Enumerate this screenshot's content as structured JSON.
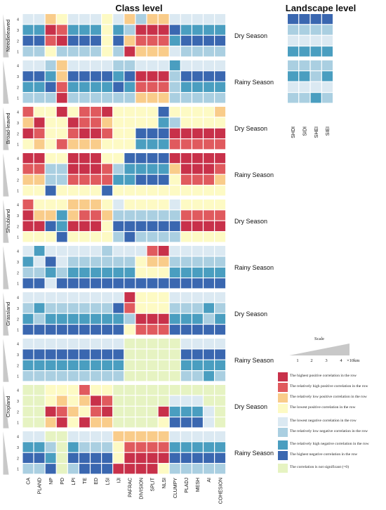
{
  "titles": {
    "class": "Class level",
    "landscape": "Landscape level"
  },
  "colors": {
    "p4": "#c8314a",
    "p3": "#e05a5e",
    "p2": "#f9cc8a",
    "p1": "#fdfac4",
    "n1": "#dbe9f2",
    "n2": "#aacfe1",
    "n3": "#4a9ec0",
    "n4": "#3a67b0",
    "ns": "#e6f3c2"
  },
  "chart_data": {
    "type": "heatmap",
    "value_scale": {
      "-4": "The highest negative correlation in the row",
      "-3": "The relatively high negative correlation in the row",
      "-2": "The relatively low negative correlation in the row",
      "-1": "The lowest negative correlation in the row",
      "0": "The correlation is not significant (=0)",
      "1": "The lowest positive correlation in the row",
      "2": "The relatively low positive correlation in the row",
      "3": "The relatively high positive correlation in the row",
      "4": "The highest positive correlation in the row"
    },
    "class_metrics": [
      "CA",
      "PLAND",
      "NP",
      "PD",
      "LPI",
      "TE",
      "ED",
      "LSI",
      "IJI",
      "PAFRAC",
      "DIVISION",
      "SPLIT",
      "NLSI",
      "CLUMPY",
      "PLADJ",
      "MESH",
      "AI",
      "COHESION"
    ],
    "landscape_metrics": [
      "SHDI",
      "SIDI",
      "SHEI",
      "SIEI"
    ],
    "row_ticks": [
      "4",
      "3",
      "2",
      "1"
    ],
    "categories": [
      "Needleleaved",
      "Broad-leaved",
      "Shrubland",
      "Grassland",
      "Cropland"
    ],
    "seasons": [
      "Dry Season",
      "Rainy Season"
    ],
    "blocks": [
      {
        "category": "Needleleaved",
        "season": "Dry Season",
        "rows": [
          [
            -1,
            -1,
            2,
            1,
            -1,
            -1,
            -1,
            1,
            -1,
            2,
            -2,
            2,
            2,
            -1,
            -1,
            -1,
            -1,
            -1
          ],
          [
            -3,
            -3,
            4,
            3,
            -3,
            -3,
            -3,
            1,
            -3,
            -2,
            4,
            4,
            4,
            -4,
            -3,
            -3,
            -3,
            -3
          ],
          [
            -4,
            -4,
            3,
            4,
            -4,
            -4,
            -4,
            1,
            -4,
            2,
            3,
            3,
            3,
            -3,
            -4,
            -4,
            -4,
            -4
          ],
          [
            -2,
            -2,
            1,
            -2,
            -2,
            -2,
            -2,
            1,
            -2,
            4,
            2,
            2,
            2,
            -1,
            -2,
            -2,
            -2,
            -2
          ]
        ]
      },
      {
        "category": "Needleleaved",
        "season": "Rainy Season",
        "rows": [
          [
            -1,
            -1,
            -2,
            2,
            -1,
            -1,
            -1,
            -1,
            -2,
            -2,
            -1,
            -1,
            -1,
            -3,
            -1,
            -1,
            -1,
            -1
          ],
          [
            -4,
            -4,
            -3,
            2,
            -4,
            -4,
            -4,
            -4,
            -3,
            -4,
            4,
            4,
            4,
            -2,
            -4,
            -4,
            -4,
            -4
          ],
          [
            -3,
            -3,
            -4,
            3,
            -3,
            -3,
            -3,
            -3,
            -4,
            -3,
            3,
            3,
            3,
            -2,
            -3,
            -3,
            -3,
            -3
          ],
          [
            -2,
            -2,
            -2,
            4,
            -2,
            -2,
            -2,
            -2,
            -2,
            -2,
            2,
            2,
            2,
            -2,
            -2,
            -2,
            -2,
            -2
          ]
        ]
      },
      {
        "category": "Broad-leaved",
        "season": "Dry Season",
        "rows": [
          [
            3,
            1,
            1,
            4,
            1,
            3,
            3,
            4,
            1,
            1,
            1,
            1,
            -4,
            1,
            1,
            1,
            1,
            2
          ],
          [
            2,
            4,
            1,
            1,
            4,
            3,
            3,
            2,
            1,
            1,
            1,
            1,
            -3,
            -2,
            1,
            1,
            1,
            1
          ],
          [
            4,
            3,
            1,
            1,
            3,
            4,
            4,
            3,
            1,
            1,
            -4,
            -4,
            -4,
            4,
            4,
            4,
            4,
            4
          ],
          [
            1,
            2,
            1,
            3,
            2,
            2,
            2,
            1,
            1,
            1,
            -3,
            -3,
            -3,
            3,
            3,
            3,
            3,
            3
          ]
        ]
      },
      {
        "category": "Broad-leaved",
        "season": "Rainy Season",
        "rows": [
          [
            4,
            4,
            1,
            1,
            4,
            4,
            4,
            1,
            1,
            -4,
            -4,
            -4,
            -4,
            4,
            4,
            4,
            4,
            4
          ],
          [
            3,
            3,
            -2,
            -2,
            4,
            4,
            4,
            3,
            -2,
            -3,
            -3,
            -3,
            -3,
            2,
            4,
            4,
            4,
            3
          ],
          [
            2,
            2,
            -2,
            -2,
            3,
            3,
            3,
            3,
            -3,
            -3,
            -4,
            -4,
            -4,
            1,
            3,
            3,
            3,
            2
          ],
          [
            1,
            1,
            -4,
            1,
            1,
            1,
            1,
            -4,
            1,
            1,
            1,
            1,
            1,
            1,
            1,
            1,
            1,
            1
          ]
        ]
      },
      {
        "category": "Shrubland",
        "season": "Dry Season",
        "rows": [
          [
            3,
            1,
            1,
            1,
            2,
            2,
            2,
            1,
            -1,
            1,
            1,
            1,
            1,
            -1,
            1,
            1,
            1,
            1
          ],
          [
            4,
            2,
            2,
            -3,
            2,
            3,
            3,
            2,
            -2,
            -2,
            -2,
            -2,
            -2,
            -2,
            3,
            3,
            3,
            3
          ],
          [
            4,
            4,
            -4,
            -3,
            4,
            4,
            4,
            1,
            -4,
            -4,
            -4,
            -4,
            -4,
            -4,
            4,
            4,
            4,
            4
          ],
          [
            1,
            1,
            1,
            -4,
            1,
            1,
            1,
            1,
            -2,
            -4,
            -2,
            -2,
            -2,
            -2,
            1,
            1,
            1,
            1
          ]
        ]
      },
      {
        "category": "Shrubland",
        "season": "Rainy Season",
        "rows": [
          [
            -1,
            -3,
            -1,
            -1,
            -1,
            -1,
            -1,
            -2,
            -1,
            -1,
            -1,
            3,
            4,
            -1,
            -1,
            -1,
            -1,
            -1
          ],
          [
            -3,
            -1,
            -4,
            -1,
            -2,
            -2,
            -2,
            -2,
            -2,
            -2,
            1,
            2,
            2,
            -2,
            -2,
            -2,
            -2,
            -2
          ],
          [
            -2,
            -2,
            -3,
            -2,
            -3,
            -3,
            -3,
            -3,
            -3,
            -3,
            1,
            1,
            1,
            -3,
            -3,
            -3,
            -3,
            -3
          ],
          [
            -4,
            -4,
            -1,
            -4,
            -4,
            -4,
            -4,
            -4,
            -4,
            -4,
            -4,
            -4,
            -4,
            -4,
            -4,
            -4,
            -4,
            -4
          ]
        ]
      },
      {
        "category": "Grassland",
        "season": "Dry Season",
        "rows": [
          [
            -1,
            -1,
            -1,
            -1,
            -1,
            -1,
            -1,
            -1,
            -1,
            4,
            1,
            1,
            1,
            -1,
            -1,
            -1,
            -1,
            -1
          ],
          [
            -2,
            -3,
            -2,
            -2,
            -2,
            -2,
            -2,
            -2,
            -4,
            3,
            1,
            1,
            1,
            -2,
            -2,
            -2,
            -3,
            -2
          ],
          [
            -3,
            -2,
            -3,
            -3,
            -3,
            -3,
            -3,
            -3,
            -3,
            -2,
            4,
            4,
            4,
            -3,
            -3,
            -3,
            -2,
            -3
          ],
          [
            -4,
            -4,
            -4,
            -4,
            -4,
            -4,
            -4,
            -4,
            -4,
            1,
            3,
            3,
            3,
            -4,
            -4,
            -4,
            -4,
            -4
          ]
        ]
      },
      {
        "category": "Grassland",
        "season": "Rainy Season",
        "rows": [
          [
            -1,
            -1,
            -1,
            -1,
            -1,
            -1,
            -1,
            -1,
            -1,
            0,
            0,
            0,
            0,
            0,
            -1,
            -1,
            -1,
            -1
          ],
          [
            -4,
            -4,
            -4,
            -4,
            -4,
            -4,
            -4,
            -4,
            -4,
            0,
            0,
            0,
            0,
            0,
            -4,
            -4,
            -4,
            -4
          ],
          [
            -3,
            -3,
            -3,
            -3,
            -3,
            -3,
            -3,
            -3,
            -3,
            0,
            0,
            0,
            0,
            0,
            -3,
            -3,
            -3,
            -3
          ],
          [
            -2,
            -2,
            -2,
            -2,
            -2,
            -2,
            -2,
            -2,
            -2,
            0,
            0,
            0,
            0,
            0,
            -2,
            -2,
            -3,
            -2
          ]
        ]
      },
      {
        "category": "Cropland",
        "season": "Dry Season",
        "rows": [
          [
            0,
            0,
            1,
            1,
            1,
            3,
            1,
            1,
            0,
            0,
            0,
            0,
            0,
            0,
            0,
            0,
            0,
            0
          ],
          [
            0,
            0,
            1,
            2,
            1,
            2,
            4,
            3,
            0,
            0,
            0,
            0,
            0,
            -1,
            -1,
            -1,
            0,
            0
          ],
          [
            0,
            0,
            4,
            3,
            2,
            1,
            3,
            4,
            0,
            0,
            0,
            0,
            4,
            -3,
            -3,
            -3,
            -1,
            0
          ],
          [
            0,
            0,
            2,
            4,
            1,
            4,
            2,
            2,
            0,
            0,
            0,
            0,
            1,
            -4,
            -4,
            -4,
            -1,
            0
          ]
        ]
      },
      {
        "category": "Cropland",
        "season": "Rainy Season",
        "rows": [
          [
            -1,
            -1,
            0,
            0,
            -1,
            -1,
            -1,
            -1,
            2,
            2,
            2,
            2,
            2,
            -1,
            -1,
            -1,
            -1,
            -1
          ],
          [
            -3,
            -3,
            -2,
            0,
            -3,
            -2,
            -2,
            -2,
            1,
            3,
            3,
            3,
            3,
            -3,
            -3,
            -3,
            -3,
            -3
          ],
          [
            -4,
            -4,
            -3,
            0,
            -4,
            -4,
            -4,
            -4,
            1,
            4,
            4,
            4,
            4,
            -4,
            -4,
            -4,
            -4,
            -4
          ],
          [
            -2,
            -2,
            -4,
            0,
            -2,
            -4,
            -4,
            -4,
            4,
            4,
            4,
            4,
            1,
            -2,
            -2,
            -2,
            -2,
            -2
          ]
        ]
      }
    ],
    "landscape_blocks": [
      {
        "season": "Dry Season",
        "rows": [
          [
            -4,
            -4,
            -4,
            -4
          ],
          [
            -2,
            -2,
            -2,
            -2
          ],
          [
            -1,
            -1,
            -1,
            -1
          ],
          [
            -3,
            -3,
            -3,
            -3
          ]
        ]
      },
      {
        "season": "Rainy Season",
        "rows": [
          [
            -2,
            -2,
            -2,
            -2
          ],
          [
            -3,
            -3,
            -2,
            -3
          ],
          [
            -1,
            -1,
            -1,
            -1
          ],
          [
            -2,
            -2,
            -3,
            -2
          ]
        ]
      }
    ]
  },
  "scale": {
    "title": "Scale",
    "ticks": [
      "1",
      "2",
      "3",
      "4"
    ],
    "unit": "×10km"
  },
  "legend": [
    {
      "color": "p4",
      "label": "The highest positive correlation in the row"
    },
    {
      "color": "p3",
      "label": "The relatively high positive correlation in the row"
    },
    {
      "color": "p2",
      "label": "The relatively low positive correlation in the row"
    },
    {
      "color": "p1",
      "label": "The lowest positive correlation in the row"
    },
    {
      "color": "n1",
      "label": "The lowest negative correlation in the row"
    },
    {
      "color": "n2",
      "label": "The relatively low negative correlation in the row"
    },
    {
      "color": "n3",
      "label": "The relatively high negative correlation in the row"
    },
    {
      "color": "n4",
      "label": "The highest negative correlation in the row"
    },
    {
      "color": "ns",
      "label": "The correlation is not significant (=0)"
    }
  ]
}
